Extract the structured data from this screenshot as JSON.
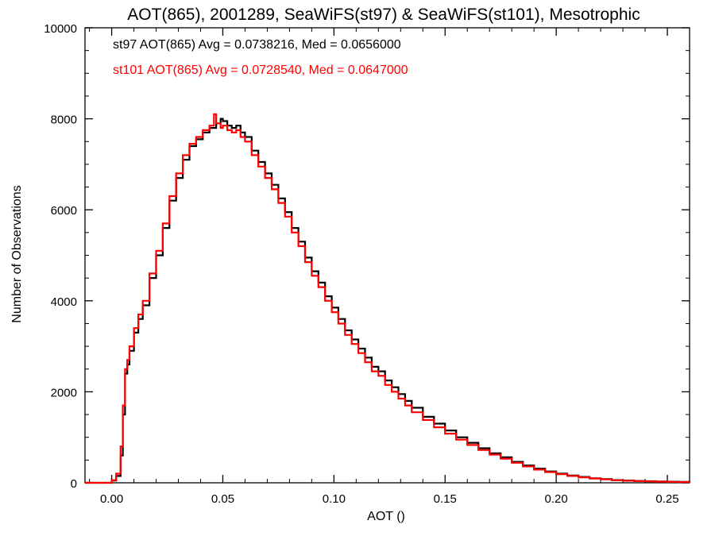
{
  "chart_data": {
    "type": "line",
    "title": "AOT(865), 2001289, SeaWiFS(st97) & SeaWiFS(st101), Mesotrophic",
    "xlabel": "AOT ()",
    "ylabel": "Number of Observations",
    "xlim": [
      -0.012,
      0.26
    ],
    "ylim": [
      0,
      10000
    ],
    "xticks": [
      "0.00",
      "0.05",
      "0.10",
      "0.15",
      "0.20",
      "0.25"
    ],
    "xtick_values": [
      0.0,
      0.05,
      0.1,
      0.15,
      0.2,
      0.25
    ],
    "yticks": [
      "0",
      "2000",
      "4000",
      "6000",
      "8000",
      "10000"
    ],
    "ytick_values": [
      0,
      2000,
      4000,
      6000,
      8000,
      10000
    ],
    "grid": false,
    "legend": "none",
    "annotations": [
      {
        "text": "st97 AOT(865) Avg = 0.0738216, Med = 0.0656000",
        "color": "#000000"
      },
      {
        "text": "st101 AOT(865) Avg = 0.0728540, Med = 0.0647000",
        "color": "#ff0000"
      }
    ],
    "series": [
      {
        "name": "st97",
        "color": "#000000",
        "x": [
          -0.012,
          -0.004,
          0.0,
          0.002,
          0.004,
          0.005,
          0.006,
          0.007,
          0.008,
          0.01,
          0.012,
          0.014,
          0.017,
          0.02,
          0.023,
          0.026,
          0.029,
          0.032,
          0.035,
          0.038,
          0.041,
          0.044,
          0.047,
          0.049,
          0.05,
          0.052,
          0.054,
          0.056,
          0.058,
          0.06,
          0.063,
          0.066,
          0.069,
          0.072,
          0.075,
          0.078,
          0.081,
          0.084,
          0.087,
          0.09,
          0.093,
          0.096,
          0.099,
          0.102,
          0.105,
          0.108,
          0.111,
          0.114,
          0.117,
          0.12,
          0.123,
          0.126,
          0.129,
          0.132,
          0.135,
          0.14,
          0.145,
          0.15,
          0.155,
          0.16,
          0.165,
          0.17,
          0.175,
          0.18,
          0.185,
          0.19,
          0.195,
          0.2,
          0.205,
          0.21,
          0.215,
          0.22,
          0.225,
          0.23,
          0.235,
          0.24,
          0.245,
          0.25,
          0.255,
          0.26
        ],
        "y": [
          0,
          0,
          50,
          150,
          600,
          1500,
          2400,
          2600,
          2900,
          3300,
          3600,
          3900,
          4500,
          5000,
          5600,
          6200,
          6700,
          7100,
          7400,
          7550,
          7700,
          7800,
          7900,
          8000,
          7950,
          7850,
          7800,
          7850,
          7700,
          7600,
          7300,
          7050,
          6800,
          6550,
          6250,
          5950,
          5600,
          5300,
          4950,
          4650,
          4400,
          4100,
          3850,
          3600,
          3350,
          3150,
          2950,
          2750,
          2550,
          2450,
          2250,
          2100,
          1950,
          1800,
          1650,
          1450,
          1300,
          1150,
          1000,
          880,
          760,
          650,
          560,
          460,
          380,
          310,
          250,
          200,
          160,
          130,
          100,
          80,
          60,
          50,
          40,
          35,
          30,
          25,
          20,
          15
        ]
      },
      {
        "name": "st101",
        "color": "#ff0000",
        "x": [
          -0.012,
          -0.004,
          0.0,
          0.002,
          0.004,
          0.005,
          0.006,
          0.007,
          0.008,
          0.01,
          0.012,
          0.014,
          0.017,
          0.02,
          0.023,
          0.026,
          0.029,
          0.032,
          0.035,
          0.038,
          0.041,
          0.044,
          0.046,
          0.047,
          0.049,
          0.05,
          0.052,
          0.054,
          0.056,
          0.058,
          0.06,
          0.063,
          0.066,
          0.069,
          0.072,
          0.075,
          0.078,
          0.081,
          0.084,
          0.087,
          0.09,
          0.093,
          0.096,
          0.099,
          0.102,
          0.105,
          0.108,
          0.111,
          0.114,
          0.117,
          0.12,
          0.123,
          0.126,
          0.129,
          0.132,
          0.135,
          0.14,
          0.145,
          0.15,
          0.155,
          0.16,
          0.165,
          0.17,
          0.175,
          0.18,
          0.185,
          0.19,
          0.195,
          0.2,
          0.205,
          0.21,
          0.215,
          0.22,
          0.225,
          0.23,
          0.235,
          0.24,
          0.245,
          0.25,
          0.255,
          0.26
        ],
        "y": [
          0,
          0,
          60,
          200,
          800,
          1700,
          2500,
          2700,
          3000,
          3400,
          3700,
          4000,
          4600,
          5100,
          5700,
          6300,
          6800,
          7200,
          7450,
          7600,
          7750,
          7850,
          8100,
          7900,
          7800,
          7850,
          7750,
          7700,
          7750,
          7600,
          7500,
          7200,
          6950,
          6700,
          6450,
          6150,
          5850,
          5500,
          5200,
          4850,
          4550,
          4300,
          4000,
          3750,
          3500,
          3250,
          3050,
          2850,
          2650,
          2450,
          2350,
          2150,
          2000,
          1850,
          1700,
          1550,
          1380,
          1220,
          1080,
          950,
          830,
          720,
          620,
          530,
          440,
          360,
          290,
          235,
          190,
          150,
          120,
          95,
          75,
          55,
          45,
          38,
          32,
          25,
          20,
          15,
          12
        ]
      }
    ]
  }
}
